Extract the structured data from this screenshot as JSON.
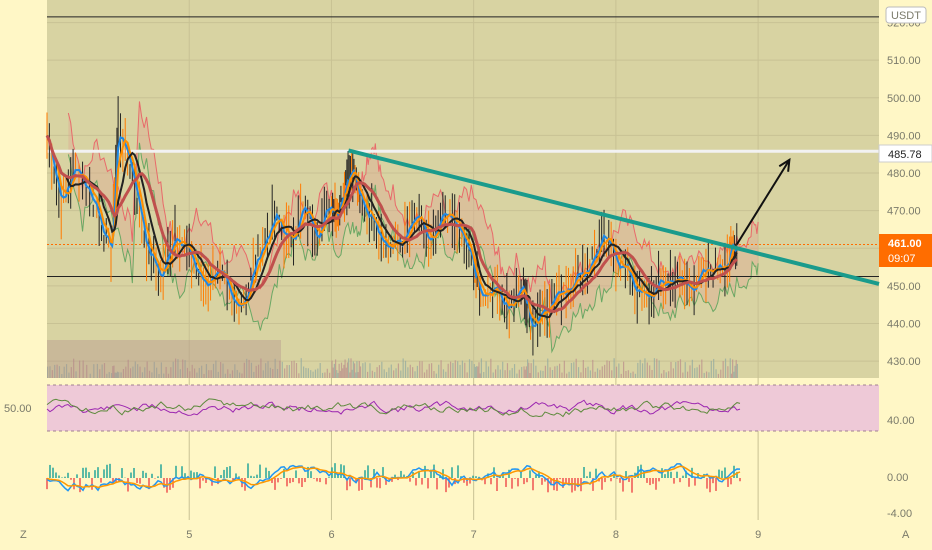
{
  "chart_data": {
    "type": "line",
    "currency": "USDT",
    "price_axis": {
      "ticks": [
        "520.00",
        "510.00",
        "500.00",
        "490.00",
        "480.00",
        "470.00",
        "460.00",
        "450.00",
        "440.00",
        "430.00"
      ],
      "values": [
        520,
        510,
        500,
        490,
        480,
        470,
        460,
        450,
        440,
        430
      ],
      "ylim": [
        425.5,
        526
      ]
    },
    "rsi_axis": {
      "left_label": "50.00",
      "right_label": "40.00"
    },
    "macd_axis": {
      "ticks": [
        "0.00",
        "-4.00"
      ]
    },
    "x_ticks": [
      "5",
      "6",
      "7",
      "8",
      "9"
    ],
    "x_tick_values": [
      5,
      6,
      7,
      8,
      9
    ],
    "xlim": [
      4.0,
      9.85
    ],
    "corner_left": "Z",
    "corner_right": "A",
    "horizontal_levels": [
      {
        "price": 521.5,
        "color": "#222222"
      },
      {
        "price": 485.78,
        "color": "#f2f2f2"
      },
      {
        "price": 452.5,
        "color": "#222222"
      }
    ],
    "resistance_label": "485.78",
    "current_price": "461.00",
    "countdown": "09:07",
    "trendline": {
      "from": [
        6.12,
        486
      ],
      "to": [
        9.85,
        450.5
      ],
      "color": "#1a9b8c"
    },
    "arrow": {
      "from": [
        8.85,
        461
      ],
      "to": [
        9.22,
        483.5
      ]
    },
    "price_series": [
      [
        4.0,
        490
      ],
      [
        4.1,
        472
      ],
      [
        4.2,
        482
      ],
      [
        4.35,
        470
      ],
      [
        4.45,
        458
      ],
      [
        4.5,
        492
      ],
      [
        4.6,
        480
      ],
      [
        4.7,
        460
      ],
      [
        4.8,
        452
      ],
      [
        4.9,
        465
      ],
      [
        5.0,
        458
      ],
      [
        5.1,
        450
      ],
      [
        5.2,
        455
      ],
      [
        5.3,
        444
      ],
      [
        5.4,
        448
      ],
      [
        5.5,
        460
      ],
      [
        5.6,
        468
      ],
      [
        5.7,
        462
      ],
      [
        5.8,
        470
      ],
      [
        5.9,
        465
      ],
      [
        6.0,
        472
      ],
      [
        6.05,
        470
      ],
      [
        6.1,
        478
      ],
      [
        6.15,
        482
      ],
      [
        6.2,
        472
      ],
      [
        6.3,
        468
      ],
      [
        6.4,
        460
      ],
      [
        6.5,
        462
      ],
      [
        6.6,
        468
      ],
      [
        6.7,
        460
      ],
      [
        6.8,
        470
      ],
      [
        6.9,
        464
      ],
      [
        7.0,
        455
      ],
      [
        7.05,
        448
      ],
      [
        7.15,
        450
      ],
      [
        7.25,
        444
      ],
      [
        7.35,
        450
      ],
      [
        7.4,
        440
      ],
      [
        7.5,
        445
      ],
      [
        7.6,
        448
      ],
      [
        7.7,
        452
      ],
      [
        7.8,
        455
      ],
      [
        7.9,
        462
      ],
      [
        8.0,
        458
      ],
      [
        8.1,
        452
      ],
      [
        8.2,
        446
      ],
      [
        8.3,
        450
      ],
      [
        8.4,
        452
      ],
      [
        8.5,
        450
      ],
      [
        8.6,
        452
      ],
      [
        8.7,
        455
      ],
      [
        8.8,
        458
      ],
      [
        8.85,
        461
      ]
    ]
  }
}
